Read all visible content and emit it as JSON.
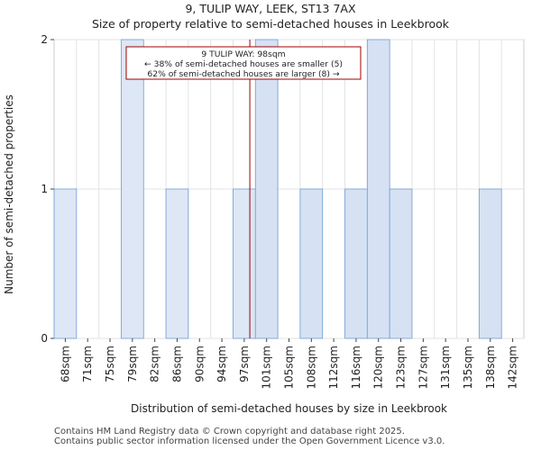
{
  "header": {
    "title": "9, TULIP WAY, LEEK, ST13 7AX",
    "subtitle": "Size of property relative to semi-detached houses in Leekbrook"
  },
  "footer": {
    "line1": "Contains HM Land Registry data © Crown copyright and database right 2025.",
    "line2": "Contains public sector information licensed under the Open Government Licence v3.0."
  },
  "chart_data": {
    "type": "bar",
    "title": "9, TULIP WAY, LEEK, ST13 7AX",
    "subtitle": "Size of property relative to semi-detached houses in Leekbrook",
    "xlabel": "Distribution of semi-detached houses by size in Leekbrook",
    "ylabel": "Number of semi-detached properties",
    "categories": [
      "68sqm",
      "71sqm",
      "75sqm",
      "79sqm",
      "82sqm",
      "86sqm",
      "90sqm",
      "94sqm",
      "97sqm",
      "101sqm",
      "105sqm",
      "108sqm",
      "112sqm",
      "116sqm",
      "120sqm",
      "123sqm",
      "127sqm",
      "131sqm",
      "135sqm",
      "138sqm",
      "142sqm"
    ],
    "values": [
      1,
      0,
      0,
      2,
      0,
      1,
      0,
      0,
      1,
      2,
      0,
      1,
      0,
      1,
      2,
      1,
      0,
      0,
      0,
      1,
      0
    ],
    "ylim": [
      0,
      2
    ],
    "yticks": [
      0,
      1,
      2
    ],
    "grid": true,
    "bar_color_below": "#dde7f5",
    "bar_color_above": "#d6e1f3",
    "bar_edge_color": "#6f9fd8",
    "marker": {
      "value": 98,
      "label_line1": "9 TULIP WAY: 98sqm",
      "label_line2": "← 38% of semi-detached houses are smaller (5)",
      "label_line3": "62% of semi-detached houses are larger (8) →",
      "color": "#a00000"
    }
  }
}
